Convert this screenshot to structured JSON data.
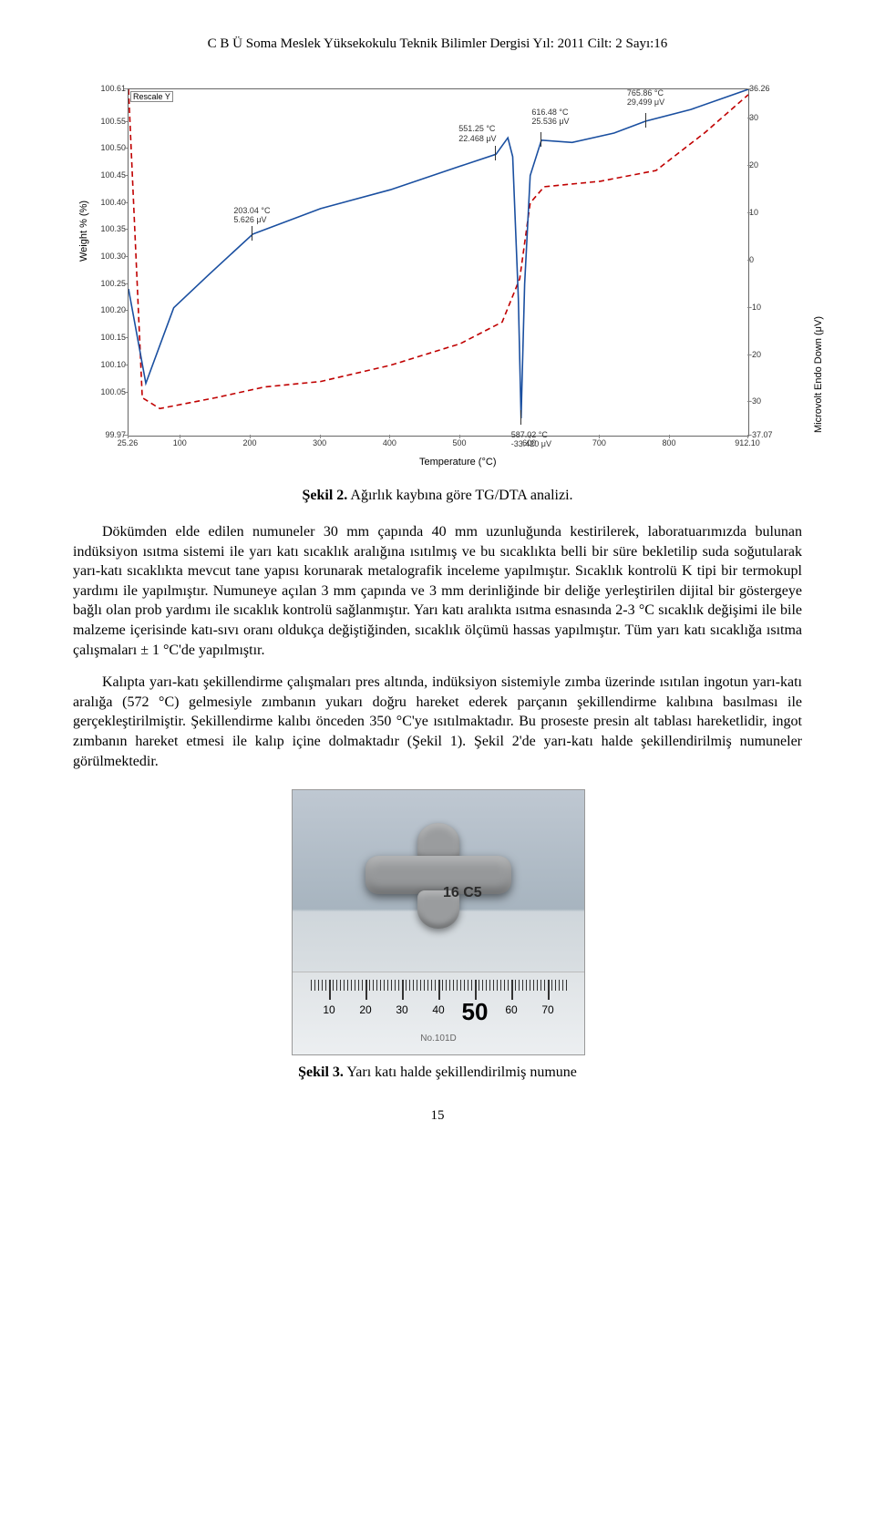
{
  "header": "C B Ü Soma Meslek Yüksekokulu Teknik Bilimler Dergisi Yıl: 2011 Cilt: 2 Sayı:16",
  "chart": {
    "type": "line-dual-axis",
    "rescale_label": "Rescale Y",
    "y_left_label": "Weight % (%)",
    "y_right_label": "Microvolt Endo Down (μV)",
    "x_label": "Temperature (°C)",
    "xlim": [
      25.26,
      912.1
    ],
    "yL_lim": [
      99.97,
      100.61
    ],
    "yR_lim": [
      -37.07,
      36.26
    ],
    "x_ticks": [
      25.26,
      100,
      200,
      300,
      400,
      500,
      600,
      700,
      800,
      912.1
    ],
    "yL_ticks": [
      99.97,
      100.05,
      100.1,
      100.15,
      100.2,
      100.25,
      100.3,
      100.35,
      100.4,
      100.45,
      100.5,
      100.55,
      100.61
    ],
    "yR_ticks": [
      -37.07,
      -30,
      -20,
      -10,
      0,
      10,
      20,
      30,
      36.26
    ],
    "colors": {
      "tg_line": "#c00000",
      "dta_line": "#1a4fa0",
      "axis": "#666666",
      "background": "#ffffff",
      "text": "#333333"
    },
    "line_styles": {
      "tg_dash": "6,4",
      "dta_dash": "none"
    },
    "annotations": [
      {
        "t": 203.04,
        "uv": 5.626,
        "label_t": "203.04 °C",
        "label_uv": "5.626 μV"
      },
      {
        "t": 551.25,
        "uv": 22.468,
        "label_t": "551.25 °C",
        "label_uv": "22.468 μV"
      },
      {
        "t": 587.02,
        "uv": -33.42,
        "label_t": "587.02 °C",
        "label_uv": "-33.420 μV"
      },
      {
        "t": 616.48,
        "uv": 25.536,
        "label_t": "616.48 °C",
        "label_uv": "25.536 μV"
      },
      {
        "t": 765.86,
        "uv": 29.499,
        "label_t": "765.86 °C",
        "label_uv": "29,499 μV"
      }
    ],
    "tg_points": [
      [
        25.26,
        100.61
      ],
      [
        45,
        100.04
      ],
      [
        70,
        100.02
      ],
      [
        150,
        100.04
      ],
      [
        220,
        100.06
      ],
      [
        300,
        100.07
      ],
      [
        400,
        100.1
      ],
      [
        500,
        100.14
      ],
      [
        560,
        100.18
      ],
      [
        585,
        100.26
      ],
      [
        600,
        100.4
      ],
      [
        620,
        100.43
      ],
      [
        700,
        100.44
      ],
      [
        780,
        100.46
      ],
      [
        850,
        100.53
      ],
      [
        912.1,
        100.6
      ]
    ],
    "dta_points": [
      [
        25.26,
        -6
      ],
      [
        50,
        -26
      ],
      [
        90,
        -10
      ],
      [
        140,
        -3
      ],
      [
        203,
        5.6
      ],
      [
        300,
        11
      ],
      [
        400,
        15
      ],
      [
        500,
        20
      ],
      [
        551,
        22.5
      ],
      [
        568,
        26
      ],
      [
        575,
        22
      ],
      [
        583,
        -8
      ],
      [
        587,
        -33.4
      ],
      [
        592,
        -5
      ],
      [
        600,
        18
      ],
      [
        616,
        25.5
      ],
      [
        660,
        25
      ],
      [
        720,
        27
      ],
      [
        765,
        29.5
      ],
      [
        830,
        32
      ],
      [
        912.1,
        36.26
      ]
    ]
  },
  "fig2": {
    "label": "Şekil 2.",
    "caption": "Ağırlık kaybına göre TG/DTA analizi."
  },
  "para1": "Dökümden elde edilen numuneler 30 mm çapında 40 mm uzunluğunda kestirilerek, laboratuarımızda bulunan indüksiyon ısıtma sistemi ile yarı katı sıcaklık aralığına ısıtılmış ve bu sıcaklıkta belli bir süre bekletilip suda soğutularak yarı-katı sıcaklıkta mevcut tane yapısı korunarak metalografik inceleme yapılmıştır. Sıcaklık kontrolü K tipi bir termokupl yardımı ile yapılmıştır. Numuneye açılan 3 mm çapında ve 3 mm derinliğinde bir deliğe yerleştirilen dijital bir göstergeye bağlı olan prob yardımı ile sıcaklık kontrolü sağlanmıştır. Yarı katı aralıkta ısıtma esnasında 2-3 °C sıcaklık değişimi ile bile malzeme içerisinde katı-sıvı oranı oldukça değiştiğinden, sıcaklık ölçümü hassas yapılmıştır. Tüm yarı katı sıcaklığa ısıtma çalışmaları ± 1 °C'de yapılmıştır.",
  "para2": "Kalıpta yarı-katı şekillendirme çalışmaları pres altında, indüksiyon sistemiyle zımba üzerinde ısıtılan ingotun yarı-katı aralığa (572 °C) gelmesiyle zımbanın yukarı doğru hareket ederek parçanın şekillendirme kalıbına basılması ile gerçekleştirilmiştir. Şekillendirme kalıbı önceden 350 °C'ye ısıtılmaktadır. Bu proseste presin alt tablası hareketlidir, ingot zımbanın hareket etmesi ile kalıp içine dolmaktadır (Şekil 1). Şekil 2'de yarı-katı halde şekillendirilmiş numuneler görülmektedir.",
  "photo": {
    "specimen_mark": "16 C5",
    "ruler_majors": [
      10,
      20,
      30,
      40,
      50,
      60,
      70
    ],
    "ruler_emphasis": 50,
    "ruler_model": "No.101D"
  },
  "fig3": {
    "label": "Şekil 3.",
    "caption": "Yarı katı halde şekillendirilmiş numune"
  },
  "page_number": "15"
}
